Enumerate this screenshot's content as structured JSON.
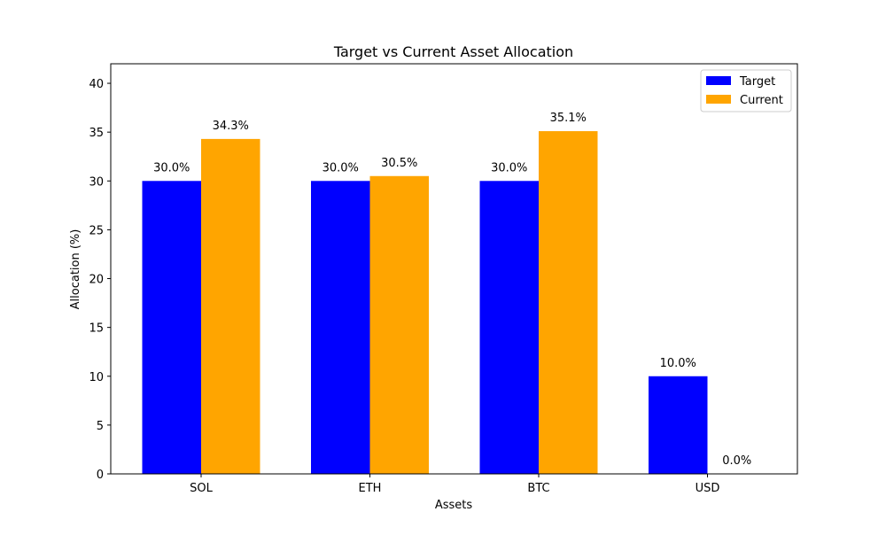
{
  "chart_data": {
    "type": "bar",
    "title": "Target vs Current Asset Allocation",
    "xlabel": "Assets",
    "ylabel": "Allocation (%)",
    "categories": [
      "SOL",
      "ETH",
      "BTC",
      "USD"
    ],
    "series": [
      {
        "name": "Target",
        "color": "#0000ff",
        "values": [
          30.0,
          30.0,
          30.0,
          10.0
        ],
        "labels": [
          "30.0%",
          "30.0%",
          "30.0%",
          "10.0%"
        ]
      },
      {
        "name": "Current",
        "color": "#ffa500",
        "values": [
          34.3,
          30.5,
          35.1,
          0.0
        ],
        "labels": [
          "34.3%",
          "30.5%",
          "35.1%",
          "0.0%"
        ]
      }
    ],
    "ylim": [
      0,
      42
    ],
    "yticks": [
      0,
      5,
      10,
      15,
      20,
      25,
      30,
      35,
      40
    ],
    "grid": false,
    "legend": "top-right"
  }
}
